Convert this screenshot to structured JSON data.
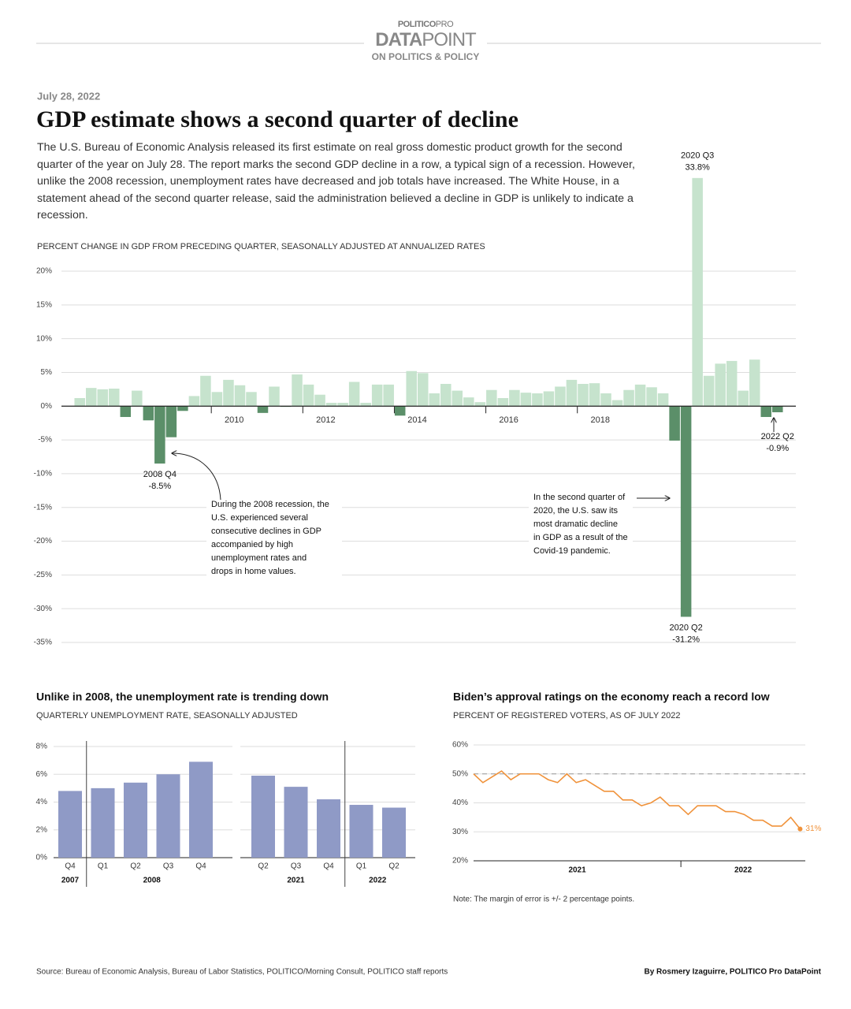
{
  "header": {
    "brand": "POLITICO",
    "brand_suffix": "PRO",
    "logo": "DATA",
    "logo_suffix": "POINT",
    "tagline": "ON POLITICS & POLICY",
    "date": "July 28, 2022",
    "title": "GDP estimate shows a second quarter of decline",
    "description": "The U.S. Bureau of Economic Analysis released its first estimate on real gross domestic product growth for the second quarter of the year on July 28. The report marks the second GDP decline in a row, a typical sign of a recession. However, unlike the 2008 recession, unemployment rates have decreased and job totals have increased. The White House, in a statement ahead of the second quarter release, said the administration believed a decline in GDP is unlikely to indicate a recession."
  },
  "chart_data": [
    {
      "type": "bar",
      "subtitle": "PERCENT CHANGE IN GDP FROM PRECEDING QUARTER, SEASONALLY ADJUSTED AT ANNUALIZED RATES",
      "x": [
        2007,
        2007.25,
        2007.5,
        2007.75,
        2008,
        2008.25,
        2008.5,
        2008.75,
        2009,
        2009.25,
        2009.5,
        2009.75,
        2010,
        2010.25,
        2010.5,
        2010.75,
        2011,
        2011.25,
        2011.5,
        2011.75,
        2012,
        2012.25,
        2012.5,
        2012.75,
        2013,
        2013.25,
        2013.5,
        2013.75,
        2014,
        2014.25,
        2014.5,
        2014.75,
        2015,
        2015.25,
        2015.5,
        2015.75,
        2016,
        2016.25,
        2016.5,
        2016.75,
        2017,
        2017.25,
        2017.5,
        2017.75,
        2018,
        2018.25,
        2018.5,
        2018.75,
        2019,
        2019.25,
        2019.5,
        2019.75,
        2020,
        2020.25,
        2020.5,
        2020.75,
        2021,
        2021.25,
        2021.5,
        2021.75,
        2022,
        2022.25
      ],
      "values": [
        1.2,
        2.7,
        2.5,
        2.6,
        -1.6,
        2.3,
        -2.1,
        -8.5,
        -4.6,
        -0.7,
        1.5,
        4.5,
        2.1,
        3.9,
        3.1,
        2.1,
        -1.0,
        2.9,
        -0.1,
        4.7,
        3.2,
        1.7,
        0.5,
        0.5,
        3.6,
        0.5,
        3.2,
        3.2,
        -1.4,
        5.2,
        4.9,
        1.9,
        3.3,
        2.3,
        1.3,
        0.6,
        2.4,
        1.2,
        2.4,
        2.0,
        1.9,
        2.2,
        2.9,
        3.9,
        3.3,
        3.4,
        1.9,
        0.9,
        2.4,
        3.2,
        2.8,
        1.9,
        -5.1,
        -31.2,
        33.8,
        4.5,
        6.3,
        6.7,
        2.3,
        6.9,
        -1.6,
        -0.9
      ],
      "labels": [
        null,
        null,
        null,
        null,
        null,
        null,
        null,
        "2008 Q4",
        null,
        null,
        null,
        null,
        null,
        null,
        null,
        null,
        null,
        null,
        null,
        null,
        null,
        null,
        null,
        null,
        null,
        null,
        null,
        null,
        null,
        null,
        null,
        null,
        null,
        null,
        null,
        null,
        null,
        null,
        null,
        null,
        null,
        null,
        null,
        null,
        null,
        null,
        null,
        null,
        null,
        null,
        null,
        null,
        null,
        "2020 Q2",
        "2020 Q3",
        null,
        null,
        null,
        null,
        null,
        null,
        "2022 Q2"
      ],
      "value_labels": [
        null,
        null,
        null,
        null,
        null,
        null,
        null,
        "-8.5%",
        null,
        null,
        null,
        null,
        null,
        null,
        null,
        null,
        null,
        null,
        null,
        null,
        null,
        null,
        null,
        null,
        null,
        null,
        null,
        null,
        null,
        null,
        null,
        null,
        null,
        null,
        null,
        null,
        null,
        null,
        null,
        null,
        null,
        null,
        null,
        null,
        null,
        null,
        null,
        null,
        null,
        null,
        null,
        null,
        null,
        "-31.2%",
        "33.8%",
        null,
        null,
        null,
        null,
        null,
        null,
        "-0.9%"
      ],
      "colors": {
        "positive": "#c6e3cd",
        "negative": "#5b8f69"
      },
      "xlim": [
        2006.6,
        2022.65
      ],
      "xticks": [
        2010,
        2012,
        2014,
        2016,
        2018
      ],
      "ylim": [
        -35,
        20
      ],
      "yticks": [
        {
          "value": 20,
          "label": "20%"
        },
        {
          "value": 15,
          "label": "15%"
        },
        {
          "value": 10,
          "label": "10%"
        },
        {
          "value": 5,
          "label": "5%"
        },
        {
          "value": 0,
          "label": "0%"
        },
        {
          "value": -5,
          "label": "-5%"
        },
        {
          "value": -10,
          "label": "-10%"
        },
        {
          "value": -15,
          "label": "-15%"
        },
        {
          "value": -20,
          "label": "-20%"
        },
        {
          "value": -25,
          "label": "-25%"
        },
        {
          "value": -30,
          "label": "-30%"
        },
        {
          "value": -35,
          "label": "-35%"
        }
      ],
      "grid": true,
      "annotations": [
        {
          "lines": [
            "During the 2008 recession, the",
            "U.S. experienced several",
            "consecutive declines in GDP",
            "accompanied by high",
            "unemployment rates and",
            "drops in home values."
          ]
        },
        {
          "lines": [
            "In the second quarter of",
            "2020, the U.S. saw its",
            "most dramatic decline",
            "in GDP as a result of the",
            "Covid-19 pandemic."
          ]
        }
      ]
    },
    {
      "type": "bar",
      "title": "Unlike in 2008, the unemployment rate is trending down",
      "subtitle": "QUARTERLY UNEMPLOYMENT RATE, SEASONALLY ADJUSTED",
      "color": "#8f9ac6",
      "ylim": [
        0,
        8
      ],
      "yticks": [
        {
          "value": 0,
          "label": "0%"
        },
        {
          "value": 2,
          "label": "2%"
        },
        {
          "value": 4,
          "label": "4%"
        },
        {
          "value": 6,
          "label": "6%"
        },
        {
          "value": 8,
          "label": "8%"
        }
      ],
      "grid": true,
      "panels": [
        {
          "groups": [
            {
              "label": "2007",
              "categories": [
                "Q4"
              ],
              "values": [
                4.8
              ]
            },
            {
              "label": "2008",
              "categories": [
                "Q1",
                "Q2",
                "Q3",
                "Q4"
              ],
              "values": [
                5.0,
                5.4,
                6.0,
                6.9
              ]
            }
          ]
        },
        {
          "groups": [
            {
              "label": "2021",
              "categories": [
                "Q2",
                "Q3",
                "Q4"
              ],
              "values": [
                5.9,
                5.1,
                4.2
              ]
            },
            {
              "label": "2022",
              "categories": [
                "Q1",
                "Q2"
              ],
              "values": [
                3.8,
                3.6
              ]
            }
          ]
        }
      ]
    },
    {
      "type": "line",
      "title": "Biden’s approval ratings on the economy reach a record low",
      "subtitle": "PERCENT OF REGISTERED VOTERS, AS OF JULY 2022",
      "color": "#f0923a",
      "x": [
        2021,
        2021.045,
        2021.09,
        2021.135,
        2021.18,
        2021.225,
        2021.27,
        2021.315,
        2021.36,
        2021.405,
        2021.45,
        2021.495,
        2021.54,
        2021.585,
        2021.63,
        2021.675,
        2021.72,
        2021.765,
        2021.81,
        2021.855,
        2021.9,
        2021.945,
        2021.99,
        2022.035,
        2022.08,
        2022.125,
        2022.17,
        2022.215,
        2022.26,
        2022.305,
        2022.35,
        2022.395,
        2022.44,
        2022.485,
        2022.53,
        2022.575
      ],
      "values": [
        50,
        47,
        49,
        51,
        48,
        50,
        50,
        50,
        48,
        47,
        50,
        47,
        48,
        46,
        44,
        44,
        41,
        41,
        39,
        40,
        42,
        39,
        39,
        36,
        39,
        39,
        39,
        37,
        37,
        36,
        34,
        34,
        32,
        32,
        35,
        31
      ],
      "value_labels": [
        null,
        null,
        null,
        null,
        null,
        null,
        null,
        null,
        null,
        null,
        null,
        null,
        null,
        null,
        null,
        null,
        null,
        null,
        null,
        null,
        null,
        null,
        null,
        null,
        null,
        null,
        null,
        null,
        null,
        null,
        null,
        null,
        null,
        null,
        null,
        "31%"
      ],
      "reference_line": 50,
      "xlim": [
        2021,
        2022.6
      ],
      "xticks": [
        2021,
        2022
      ],
      "ylim": [
        20,
        60
      ],
      "yticks": [
        {
          "value": 20,
          "label": "20%"
        },
        {
          "value": 30,
          "label": "30%"
        },
        {
          "value": 40,
          "label": "40%"
        },
        {
          "value": 50,
          "label": "50%"
        },
        {
          "value": 60,
          "label": "60%"
        }
      ],
      "grid": true,
      "note": "Note: The margin of error is +/- 2 percentage points."
    }
  ],
  "footer": {
    "source": "Source: Bureau of Economic Analysis, Bureau of Labor Statistics, POLITICO/Morning Consult, POLITICO staff reports",
    "byline": "By Rosmery Izaguirre, POLITICO Pro DataPoint"
  }
}
